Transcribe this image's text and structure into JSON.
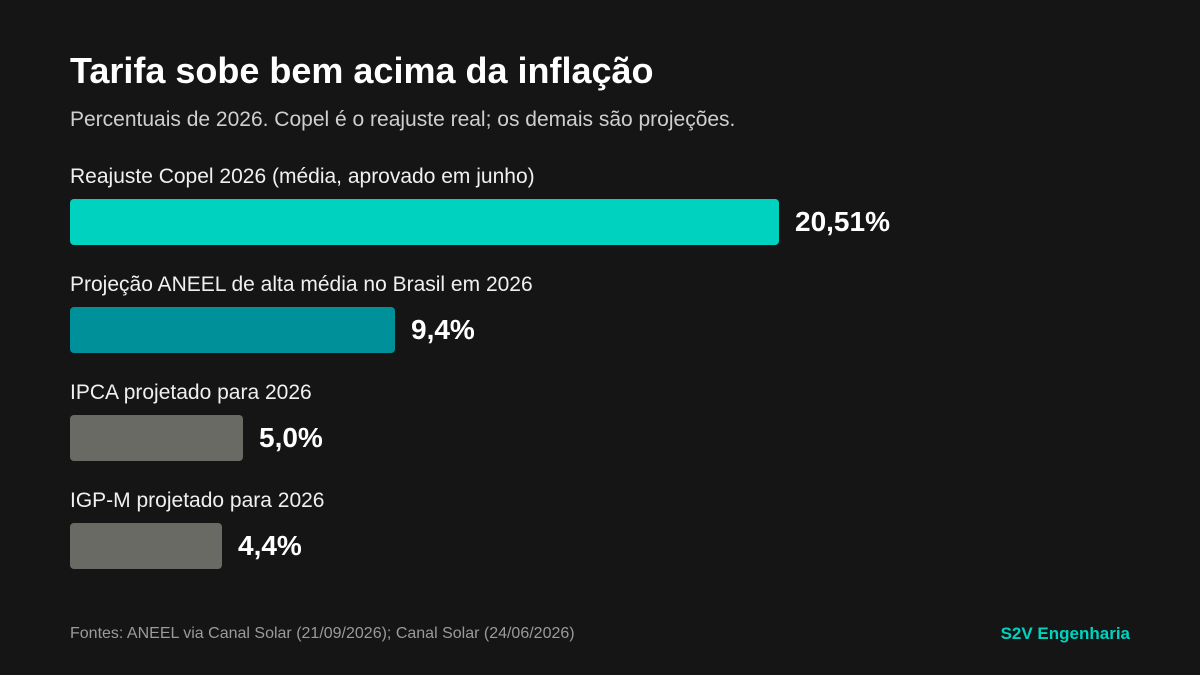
{
  "title": "Tarifa sobe bem acima da inflação",
  "subtitle": "Percentuais de 2026. Copel é o reajuste real; os demais são projeções.",
  "colors": {
    "background": "#151515",
    "copel": "#00d2c0",
    "aneel": "#00909a",
    "gray": "#6a6a64",
    "brand": "#00d2c0"
  },
  "chart_data": {
    "type": "bar",
    "orientation": "horizontal",
    "categories": [
      "Reajuste Copel 2026 (média, aprovado em junho)",
      "Projeção ANEEL de alta média no Brasil em 2026",
      "IPCA projetado para 2026",
      "IGP-M projetado para 2026"
    ],
    "values": [
      20.51,
      9.4,
      5.0,
      4.4
    ],
    "value_labels": [
      "20,51%",
      "9,4%",
      "5,0%",
      "4,4%"
    ],
    "bar_colors": [
      "#00d2c0",
      "#00909a",
      "#6a6a64",
      "#6a6a64"
    ],
    "xlim": [
      0,
      20.51
    ],
    "grid": false
  },
  "footer": {
    "source": "Fontes: ANEEL via Canal Solar (21/09/2026); Canal Solar (24/06/2026)",
    "brand": "S2V Engenharia"
  }
}
